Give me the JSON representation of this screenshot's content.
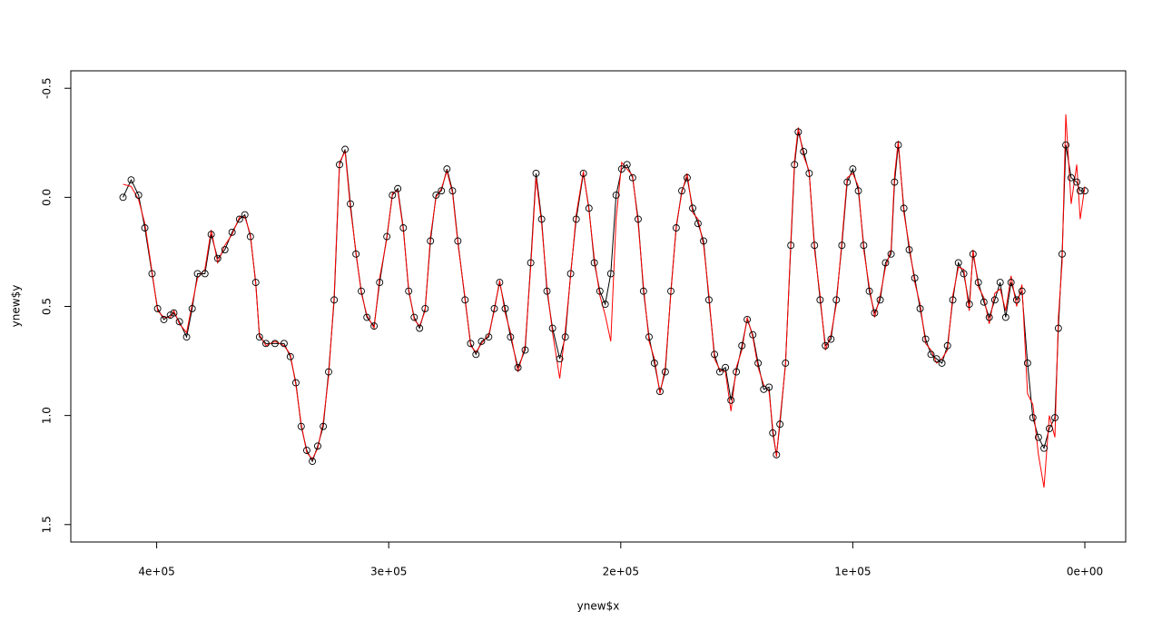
{
  "chart_data": {
    "type": "line",
    "xlabel": "ynew$x",
    "ylabel": "ynew$y",
    "xlim": [
      437000,
      -17600
    ],
    "ylim": [
      1.58,
      -0.58
    ],
    "xticks": [
      {
        "value": 400000,
        "label": "4e+05"
      },
      {
        "value": 300000,
        "label": "3e+05"
      },
      {
        "value": 200000,
        "label": "2e+05"
      },
      {
        "value": 100000,
        "label": "1e+05"
      },
      {
        "value": 0,
        "label": "0e+00"
      }
    ],
    "yticks": [
      -0.5,
      {
        "value": 0,
        "label": "0.0"
      },
      0.5,
      {
        "value": 1,
        "label": "1.0"
      },
      1.5
    ],
    "x": [
      414500,
      411000,
      407800,
      405100,
      402000,
      399600,
      396900,
      394100,
      392600,
      390200,
      387100,
      384700,
      382400,
      379200,
      376500,
      373700,
      370600,
      367500,
      364300,
      362000,
      359600,
      357300,
      355700,
      352900,
      349000,
      345100,
      342400,
      340000,
      337700,
      335300,
      332900,
      330600,
      328200,
      325900,
      323500,
      321200,
      318800,
      316500,
      314100,
      311800,
      309400,
      306300,
      303900,
      300800,
      298400,
      296100,
      293700,
      291400,
      289000,
      286700,
      284300,
      282000,
      279600,
      277300,
      274900,
      272500,
      270200,
      267100,
      264700,
      262400,
      260000,
      256900,
      254500,
      252200,
      249800,
      247500,
      244300,
      241200,
      238800,
      236500,
      234100,
      231800,
      229400,
      226300,
      223900,
      221600,
      219200,
      216100,
      213700,
      211400,
      209000,
      206700,
      204300,
      202000,
      199600,
      197300,
      194900,
      192500,
      190200,
      187800,
      185500,
      183100,
      180800,
      178400,
      176100,
      173700,
      171400,
      169000,
      166700,
      164300,
      162000,
      159600,
      157300,
      154900,
      152500,
      150200,
      147800,
      145500,
      143100,
      140800,
      138400,
      136100,
      134500,
      132900,
      131400,
      129000,
      126700,
      125100,
      123500,
      121200,
      118800,
      116500,
      114100,
      111800,
      109400,
      107100,
      104700,
      102400,
      100000,
      97600,
      95300,
      92900,
      90600,
      88200,
      85900,
      83500,
      82000,
      80400,
      78000,
      75700,
      73300,
      71000,
      68600,
      66300,
      63900,
      61600,
      59200,
      56900,
      54500,
      52200,
      49800,
      48200,
      45900,
      43500,
      41200,
      38800,
      36500,
      34100,
      31800,
      29400,
      27100,
      24700,
      22400,
      20000,
      17600,
      15300,
      12900,
      11400,
      9800,
      8200,
      5900,
      3500,
      2000,
      0
    ],
    "series": [
      {
        "color": "#000000",
        "markers": true,
        "values": [
          0.0,
          -0.08,
          -0.01,
          0.14,
          0.35,
          0.51,
          0.56,
          0.54,
          0.53,
          0.57,
          0.64,
          0.51,
          0.35,
          0.35,
          0.17,
          0.28,
          0.24,
          0.16,
          0.1,
          0.08,
          0.18,
          0.39,
          0.64,
          0.67,
          0.67,
          0.67,
          0.73,
          0.85,
          1.05,
          1.16,
          1.21,
          1.14,
          1.05,
          0.8,
          0.47,
          -0.15,
          -0.22,
          0.03,
          0.26,
          0.43,
          0.55,
          0.59,
          0.39,
          0.18,
          -0.01,
          -0.04,
          0.14,
          0.43,
          0.55,
          0.6,
          0.51,
          0.2,
          -0.01,
          -0.03,
          -0.13,
          -0.03,
          0.2,
          0.47,
          0.67,
          0.72,
          0.66,
          0.64,
          0.51,
          0.39,
          0.51,
          0.64,
          0.78,
          0.7,
          0.3,
          -0.11,
          0.1,
          0.43,
          0.6,
          0.74,
          0.64,
          0.35,
          0.1,
          -0.11,
          0.05,
          0.3,
          0.43,
          0.49,
          0.35,
          -0.01,
          -0.13,
          -0.15,
          -0.09,
          0.1,
          0.43,
          0.64,
          0.76,
          0.89,
          0.8,
          0.43,
          0.14,
          -0.03,
          -0.09,
          0.05,
          0.12,
          0.2,
          0.47,
          0.72,
          0.8,
          0.78,
          0.93,
          0.8,
          0.68,
          0.56,
          0.63,
          0.76,
          0.88,
          0.87,
          1.08,
          1.18,
          1.04,
          0.76,
          0.22,
          -0.15,
          -0.3,
          -0.21,
          -0.11,
          0.22,
          0.47,
          0.68,
          0.65,
          0.47,
          0.22,
          -0.07,
          -0.13,
          -0.03,
          0.22,
          0.43,
          0.53,
          0.47,
          0.3,
          0.26,
          -0.07,
          -0.24,
          0.05,
          0.24,
          0.37,
          0.51,
          0.65,
          0.72,
          0.74,
          0.76,
          0.68,
          0.47,
          0.3,
          0.35,
          0.49,
          0.26,
          0.39,
          0.48,
          0.55,
          0.47,
          0.39,
          0.55,
          0.39,
          0.47,
          0.43,
          0.76,
          1.01,
          1.1,
          1.15,
          1.06,
          1.01,
          0.6,
          0.26,
          -0.24,
          -0.09,
          -0.07,
          -0.03,
          -0.03
        ]
      },
      {
        "color": "#ff0000",
        "markers": false,
        "values": [
          -0.06,
          -0.05,
          0.01,
          0.12,
          0.34,
          0.52,
          0.55,
          0.55,
          0.52,
          0.58,
          0.62,
          0.49,
          0.37,
          0.33,
          0.15,
          0.3,
          0.22,
          0.17,
          0.09,
          0.09,
          0.17,
          0.4,
          0.63,
          0.68,
          0.66,
          0.68,
          0.72,
          0.86,
          1.04,
          1.17,
          1.2,
          1.15,
          1.03,
          0.82,
          0.45,
          -0.16,
          -0.21,
          0.05,
          0.25,
          0.44,
          0.54,
          0.6,
          0.37,
          0.19,
          -0.02,
          -0.03,
          0.15,
          0.42,
          0.56,
          0.59,
          0.52,
          0.18,
          0.0,
          -0.04,
          -0.12,
          -0.02,
          0.21,
          0.46,
          0.68,
          0.71,
          0.67,
          0.63,
          0.52,
          0.38,
          0.53,
          0.62,
          0.8,
          0.68,
          0.32,
          -0.09,
          0.12,
          0.41,
          0.62,
          0.83,
          0.61,
          0.36,
          0.08,
          -0.12,
          0.06,
          0.28,
          0.45,
          0.54,
          0.66,
          0.1,
          -0.16,
          -0.13,
          -0.1,
          0.12,
          0.41,
          0.66,
          0.74,
          0.9,
          0.78,
          0.44,
          0.13,
          -0.02,
          -0.11,
          0.07,
          0.1,
          0.22,
          0.45,
          0.74,
          0.79,
          0.8,
          0.98,
          0.78,
          0.7,
          0.55,
          0.64,
          0.78,
          0.86,
          0.89,
          1.06,
          1.19,
          1.02,
          0.77,
          0.2,
          -0.17,
          -0.32,
          -0.19,
          -0.12,
          0.24,
          0.45,
          0.7,
          0.63,
          0.49,
          0.2,
          -0.09,
          -0.11,
          -0.05,
          0.24,
          0.41,
          0.55,
          0.45,
          0.32,
          0.24,
          -0.1,
          -0.26,
          0.07,
          0.22,
          0.39,
          0.49,
          0.67,
          0.7,
          0.76,
          0.74,
          0.7,
          0.45,
          0.32,
          0.33,
          0.52,
          0.24,
          0.41,
          0.46,
          0.58,
          0.44,
          0.42,
          0.52,
          0.36,
          0.5,
          0.4,
          0.9,
          0.95,
          1.18,
          1.33,
          1.0,
          1.1,
          0.55,
          0.3,
          -0.38,
          0.03,
          -0.15,
          0.1,
          -0.05
        ]
      }
    ]
  }
}
